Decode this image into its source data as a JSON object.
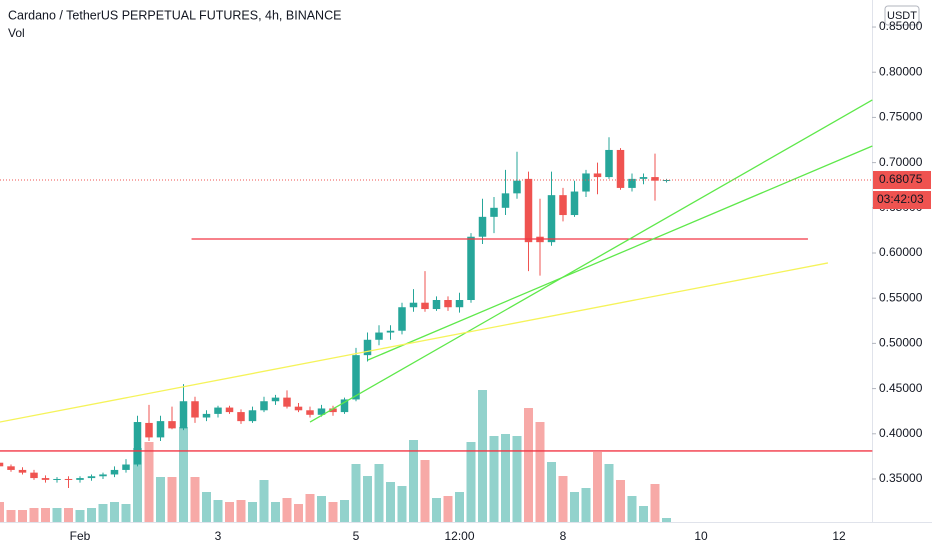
{
  "chart_data": {
    "type": "candlestick",
    "title": "Cardano / TetherUS PERPETUAL FUTURES, 4h, BINANCE",
    "volume_label": "Vol",
    "currency": "USDT",
    "last_price_label": "0.68075",
    "countdown": "03:42:03",
    "up_color": "#26a69a",
    "down_color": "#ef5350",
    "categories": [
      null,
      null,
      null,
      null,
      null,
      null,
      null,
      "Feb",
      null,
      null,
      null,
      null,
      null,
      null,
      null,
      null,
      null,
      null,
      null,
      "3",
      null,
      null,
      null,
      null,
      null,
      null,
      null,
      null,
      null,
      null,
      null,
      "5",
      null,
      null,
      null,
      null,
      null,
      null,
      null,
      null,
      "12:00",
      null,
      null,
      null,
      null,
      null,
      null,
      null,
      null,
      "8",
      null,
      null,
      null,
      null,
      null,
      null,
      null,
      null,
      null,
      null,
      null,
      "10",
      null,
      null,
      null,
      null,
      null,
      null,
      null,
      null,
      null,
      null,
      null,
      "12",
      null,
      null
    ],
    "open": [
      0.368,
      0.364,
      0.36,
      0.357,
      0.351,
      0.349,
      0.35,
      0.349,
      0.351,
      0.353,
      0.355,
      0.36,
      0.366,
      0.412,
      0.396,
      0.414,
      0.406,
      0.436,
      0.418,
      0.422,
      0.429,
      0.424,
      0.414,
      0.426,
      0.436,
      0.44,
      0.43,
      0.426,
      0.421,
      0.428,
      0.424,
      0.438,
      0.487,
      0.504,
      0.512,
      0.514,
      0.54,
      0.545,
      0.538,
      0.548,
      0.54,
      0.548,
      0.618,
      0.64,
      0.65,
      0.666,
      0.682,
      0.618,
      0.612,
      0.664,
      0.642,
      0.668,
      0.688,
      0.684,
      0.714,
      0.672,
      0.682,
      0.684,
      0.68,
      null,
      null,
      null,
      null,
      null,
      null,
      null,
      null,
      null,
      null,
      null,
      null,
      null,
      null,
      null,
      null,
      null
    ],
    "high": [
      0.38,
      0.366,
      0.363,
      0.36,
      0.354,
      0.352,
      0.353,
      0.353,
      0.355,
      0.357,
      0.364,
      0.372,
      0.42,
      0.432,
      0.42,
      0.43,
      0.455,
      0.441,
      0.426,
      0.431,
      0.431,
      0.427,
      0.43,
      0.441,
      0.443,
      0.448,
      0.434,
      0.43,
      0.432,
      0.431,
      0.44,
      0.495,
      0.512,
      0.52,
      0.52,
      0.545,
      0.56,
      0.58,
      0.552,
      0.552,
      0.556,
      0.622,
      0.66,
      0.662,
      0.692,
      0.712,
      0.69,
      0.66,
      0.69,
      0.672,
      0.68,
      0.692,
      0.7,
      0.728,
      0.716,
      0.688,
      0.688,
      0.71,
      0.682,
      null,
      null,
      null,
      null,
      null,
      null,
      null,
      null,
      null,
      null,
      null,
      null,
      null,
      null,
      null,
      null,
      null
    ],
    "low": [
      0.363,
      0.358,
      0.355,
      0.349,
      0.346,
      0.346,
      0.34,
      0.346,
      0.348,
      0.35,
      0.352,
      0.357,
      0.364,
      0.392,
      0.392,
      0.405,
      0.404,
      0.412,
      0.414,
      0.418,
      0.422,
      0.411,
      0.412,
      0.424,
      0.432,
      0.428,
      0.424,
      0.418,
      0.419,
      0.42,
      0.422,
      0.436,
      0.48,
      0.498,
      0.504,
      0.51,
      0.535,
      0.535,
      0.536,
      0.536,
      0.534,
      0.545,
      0.61,
      0.622,
      0.642,
      0.66,
      0.58,
      0.575,
      0.608,
      0.635,
      0.64,
      0.662,
      0.665,
      0.682,
      0.67,
      0.668,
      0.676,
      0.658,
      0.678,
      null,
      null,
      null,
      null,
      null,
      null,
      null,
      null,
      null,
      null,
      null,
      null,
      null,
      null,
      null,
      null,
      null
    ],
    "close": [
      0.364,
      0.36,
      0.357,
      0.351,
      0.349,
      0.35,
      0.349,
      0.351,
      0.353,
      0.355,
      0.36,
      0.366,
      0.413,
      0.396,
      0.414,
      0.406,
      0.436,
      0.418,
      0.422,
      0.429,
      0.424,
      0.414,
      0.426,
      0.436,
      0.44,
      0.43,
      0.426,
      0.421,
      0.428,
      0.424,
      0.438,
      0.487,
      0.504,
      0.512,
      0.514,
      0.54,
      0.545,
      0.538,
      0.548,
      0.54,
      0.548,
      0.618,
      0.64,
      0.65,
      0.666,
      0.68,
      0.612,
      0.612,
      0.664,
      0.642,
      0.668,
      0.688,
      0.684,
      0.714,
      0.672,
      0.682,
      0.684,
      0.68,
      0.68075,
      null,
      null,
      null,
      null,
      null,
      null,
      null,
      null,
      null,
      null,
      null,
      null,
      null,
      null,
      null,
      null,
      null
    ],
    "volume": [
      20,
      12,
      12,
      14,
      14,
      14,
      14,
      12,
      14,
      18,
      20,
      18,
      74,
      80,
      45,
      45,
      95,
      45,
      30,
      22,
      20,
      22,
      20,
      42,
      20,
      24,
      18,
      28,
      26,
      20,
      22,
      58,
      46,
      58,
      40,
      36,
      82,
      62,
      24,
      26,
      30,
      80,
      132,
      86,
      88,
      86,
      114,
      100,
      60,
      46,
      30,
      34,
      70,
      58,
      42,
      26,
      16,
      38,
      4,
      null,
      null,
      null,
      null,
      null,
      null,
      null,
      null,
      null,
      null,
      null,
      null,
      null,
      null,
      null,
      null,
      null
    ],
    "ylim": [
      0.3024,
      0.8799
    ],
    "yticks": [
      {
        "value": 0.35,
        "label": "0.35000"
      },
      {
        "value": 0.4,
        "label": "0.40000"
      },
      {
        "value": 0.45,
        "label": "0.45000"
      },
      {
        "value": 0.5,
        "label": "0.50000"
      },
      {
        "value": 0.55,
        "label": "0.55000"
      },
      {
        "value": 0.6,
        "label": "0.60000"
      },
      {
        "value": 0.65,
        "label": "0.65000"
      },
      {
        "value": 0.7,
        "label": "0.70000"
      },
      {
        "value": 0.75,
        "label": "0.75000"
      },
      {
        "value": 0.8,
        "label": "0.80000"
      },
      {
        "value": 0.85,
        "label": "0.85000"
      }
    ],
    "drawings": [
      {
        "color": "#f23645",
        "points": [
          [
            0,
            0.381
          ],
          [
            75.9,
            0.381
          ]
        ]
      },
      {
        "color": "#f23645",
        "points": [
          [
            16.7,
            0.6155
          ],
          [
            70.3,
            0.6155
          ]
        ]
      },
      {
        "color": "#5ee84a",
        "points": [
          [
            27,
            0.413
          ],
          [
            75.9,
            0.7693
          ]
        ]
      },
      {
        "color": "#5ee84a",
        "points": [
          [
            32.04,
            0.4816
          ],
          [
            75.9,
            0.7184
          ]
        ]
      },
      {
        "color": "#f5f35a",
        "points": [
          [
            0.04,
            0.413
          ],
          [
            72.04,
            0.589
          ]
        ]
      }
    ]
  }
}
